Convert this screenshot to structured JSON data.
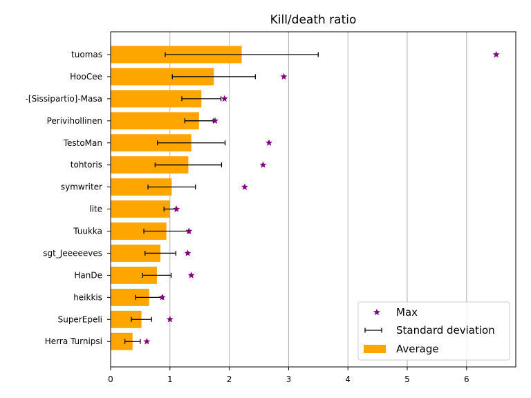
{
  "chart_data": {
    "type": "bar",
    "orientation": "horizontal",
    "title": "Kill/death ratio",
    "xlabel": "",
    "ylabel": "",
    "xlim": [
      0,
      6.83
    ],
    "xticks": [
      "0",
      "1",
      "2",
      "3",
      "4",
      "5",
      "6"
    ],
    "grid": "vertical",
    "legend_position": "lower-right",
    "categories": [
      "tuomas",
      "HooCee",
      "-[Sissipartio]-Masa",
      "Perivihollinen",
      "TestoMan",
      "tohtoris",
      "symwriter",
      "lite",
      "Tuukka",
      "sgt_Jeeeeeves",
      "HanDe",
      "heikkis",
      "SuperEpeli",
      "Herra Turnipsi"
    ],
    "series": [
      {
        "name": "Average",
        "kind": "bar",
        "color": "#ffa500",
        "values": [
          2.21,
          1.74,
          1.53,
          1.49,
          1.36,
          1.31,
          1.03,
          1.0,
          0.94,
          0.84,
          0.78,
          0.65,
          0.52,
          0.37
        ]
      },
      {
        "name": "Standard deviation",
        "kind": "errorbar",
        "color": "#000000",
        "values": [
          1.29,
          0.7,
          0.33,
          0.24,
          0.57,
          0.56,
          0.4,
          0.1,
          0.38,
          0.26,
          0.24,
          0.23,
          0.17,
          0.13
        ]
      },
      {
        "name": "Max",
        "kind": "marker",
        "color": "#800080",
        "values": [
          6.5,
          2.92,
          1.92,
          1.76,
          2.67,
          2.57,
          2.26,
          1.11,
          1.32,
          1.3,
          1.36,
          0.87,
          1.0,
          0.61
        ]
      }
    ]
  }
}
